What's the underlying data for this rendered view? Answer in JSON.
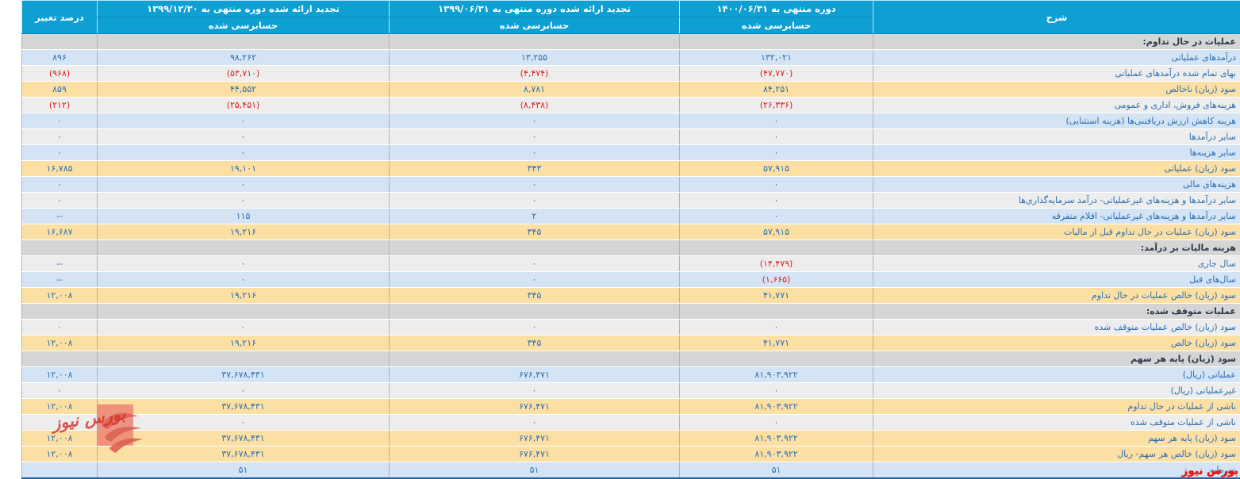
{
  "watermark": {
    "text": "بورس نیوز"
  },
  "colors": {
    "header_bg": "#0e9fd3",
    "section_bg": "#d5d5d5",
    "row_blue": "#d4e4f5",
    "row_gray": "#ededed",
    "row_tan": "#fcdfa3",
    "value_blue": "#2c6fb2",
    "negative_red": "#df1f1f",
    "bottom_border_blue": "#23639e",
    "watermark_red": "#e03c31"
  },
  "table": {
    "headers": {
      "desc": "شرح",
      "col_1400": {
        "title": "دوره منتهی به ۱۴۰۰/۰۶/۳۱",
        "sub": "حسابرسی شده"
      },
      "col_1399_06": {
        "title": "تجدید ارائه شده دوره منتهی به ۱۳۹۹/۰۶/۳۱",
        "sub": "حسابرسی شده"
      },
      "col_1399_12": {
        "title": "تجدید ارائه شده دوره منتهی به ۱۳۹۹/۱۲/۳۰",
        "sub": "حسابرسی شده"
      },
      "pct_change": "درصد تغییر"
    },
    "rows": [
      {
        "type": "section",
        "label": "عملیات در حال تداوم:"
      },
      {
        "type": "data",
        "bg": "blue",
        "label": "درآمدهای عملیاتی",
        "v1400": "۱۳۲,۰۲۱",
        "v1399_06": "۱۳,۲۵۵",
        "v1399_12": "۹۸,۲۶۲",
        "pct": "۸۹۶"
      },
      {
        "type": "data",
        "bg": "gray",
        "label": "بهای تمام شده درآمدهای عملیاتی",
        "v1400": "(۴۷,۷۷۰)",
        "v1399_06": "(۴,۴۷۴)",
        "v1399_12": "(۵۳,۷۱۰)",
        "pct": "(۹۶۸)"
      },
      {
        "type": "data",
        "bg": "tan",
        "label": "سود (زیان) ناخالص",
        "v1400": "۸۴,۲۵۱",
        "v1399_06": "۸,۷۸۱",
        "v1399_12": "۴۴,۵۵۲",
        "pct": "۸۵۹"
      },
      {
        "type": "data",
        "bg": "gray",
        "label": "هزینه‌های فروش، اداری و عمومی",
        "v1400": "(۲۶,۳۳۶)",
        "v1399_06": "(۸,۴۳۸)",
        "v1399_12": "(۲۵,۴۵۱)",
        "pct": "(۲۱۲)"
      },
      {
        "type": "data",
        "bg": "blue",
        "label": "هزینه کاهش ارزش دریافتنی‌ها (هزینه استثنایی)",
        "v1400": "۰",
        "v1399_06": "۰",
        "v1399_12": "۰",
        "pct": "۰"
      },
      {
        "type": "data",
        "bg": "gray",
        "label": "سایر درآمدها",
        "v1400": "۰",
        "v1399_06": "۰",
        "v1399_12": "۰",
        "pct": "۰"
      },
      {
        "type": "data",
        "bg": "blue",
        "label": "سایر هزینه‌ها",
        "v1400": "۰",
        "v1399_06": "۰",
        "v1399_12": "۰",
        "pct": "۰"
      },
      {
        "type": "data",
        "bg": "tan",
        "label": "سود (زیان) عملیاتی",
        "v1400": "۵۷,۹۱۵",
        "v1399_06": "۳۴۳",
        "v1399_12": "۱۹,۱۰۱",
        "pct": "۱۶,۷۸۵"
      },
      {
        "type": "data",
        "bg": "blue",
        "label": "هزینه‌های مالی",
        "v1400": "۰",
        "v1399_06": "۰",
        "v1399_12": "۰",
        "pct": "۰"
      },
      {
        "type": "data",
        "bg": "gray",
        "label": "سایر درآمدها و هزینه‌های غیرعملیاتی- درآمد سرمایه‌گذاری‌ها",
        "v1400": "۰",
        "v1399_06": "۰",
        "v1399_12": "۰",
        "pct": "۰"
      },
      {
        "type": "data",
        "bg": "blue",
        "label": "سایر درآمدها و هزینه‌های غیرعملیاتی- اقلام متفرقه",
        "v1400": "۰",
        "v1399_06": "۲",
        "v1399_12": "۱۱۵",
        "pct": "--"
      },
      {
        "type": "data",
        "bg": "tan",
        "label": "سود (زیان) عملیات در حال تداوم قبل از مالیات",
        "v1400": "۵۷,۹۱۵",
        "v1399_06": "۳۴۵",
        "v1399_12": "۱۹,۲۱۶",
        "pct": "۱۶,۶۸۷"
      },
      {
        "type": "section",
        "label": "هزینه مالیات بر درآمد:"
      },
      {
        "type": "data",
        "bg": "gray",
        "label": "سال جاری",
        "v1400": "(۱۴,۴۷۹)",
        "v1399_06": "۰",
        "v1399_12": "۰",
        "pct": "--"
      },
      {
        "type": "data",
        "bg": "blue",
        "label": "سال‌های قبل",
        "v1400": "(۱,۶۶۵)",
        "v1399_06": "۰",
        "v1399_12": "۰",
        "pct": "--"
      },
      {
        "type": "data",
        "bg": "tan",
        "label": "سود (زیان) خالص عملیات در حال تداوم",
        "v1400": "۴۱,۷۷۱",
        "v1399_06": "۳۴۵",
        "v1399_12": "۱۹,۲۱۶",
        "pct": "۱۲,۰۰۸"
      },
      {
        "type": "section",
        "label": "عملیات متوقف شده:"
      },
      {
        "type": "data",
        "bg": "gray",
        "label": "سود (زیان) خالص عملیات متوقف شده",
        "v1400": "۰",
        "v1399_06": "۰",
        "v1399_12": "۰",
        "pct": "۰"
      },
      {
        "type": "data",
        "bg": "tan",
        "label": "سود (زیان) خالص",
        "v1400": "۴۱,۷۷۱",
        "v1399_06": "۳۴۵",
        "v1399_12": "۱۹,۲۱۶",
        "pct": "۱۲,۰۰۸"
      },
      {
        "type": "section",
        "label": "سود (زیان) پایه هر سهم"
      },
      {
        "type": "data",
        "bg": "blue",
        "label": "عملیاتی (ریال)",
        "v1400": "۸۱,۹۰۳,۹۲۲",
        "v1399_06": "۶۷۶,۴۷۱",
        "v1399_12": "۳۷,۶۷۸,۴۳۱",
        "pct": "۱۲,۰۰۸"
      },
      {
        "type": "data",
        "bg": "gray",
        "label": "غیرعملیاتی (ریال)",
        "v1400": "۰",
        "v1399_06": "۰",
        "v1399_12": "۰",
        "pct": "۰"
      },
      {
        "type": "data",
        "bg": "tan",
        "label": "ناشی از عملیات در حال تداوم",
        "v1400": "۸۱,۹۰۳,۹۲۲",
        "v1399_06": "۶۷۶,۴۷۱",
        "v1399_12": "۳۷,۶۷۸,۴۳۱",
        "pct": "۱۲,۰۰۸"
      },
      {
        "type": "data",
        "bg": "gray",
        "label": "ناشی از عملیات متوقف شده",
        "v1400": "۰",
        "v1399_06": "۰",
        "v1399_12": "۰",
        "pct": "۰"
      },
      {
        "type": "data",
        "bg": "tan",
        "label": "سود (زیان) پایه هر سهم",
        "v1400": "۸۱,۹۰۳,۹۲۲",
        "v1399_06": "۶۷۶,۴۷۱",
        "v1399_12": "۳۷,۶۷۸,۴۳۱",
        "pct": "۱۲,۰۰۸"
      },
      {
        "type": "data",
        "bg": "tan",
        "label": "سود (زیان) خالص هر سهم- ریال",
        "v1400": "۸۱,۹۰۳,۹۲۲",
        "v1399_06": "۶۷۶,۴۷۱",
        "v1399_12": "۳۷,۶۷۸,۴۳۱",
        "pct": "۱۲,۰۰۸"
      },
      {
        "type": "data",
        "bg": "blue",
        "label": "سرمایه",
        "v1400": "۵۱",
        "v1399_06": "۵۱",
        "v1399_12": "۵۱",
        "pct": ""
      }
    ]
  }
}
